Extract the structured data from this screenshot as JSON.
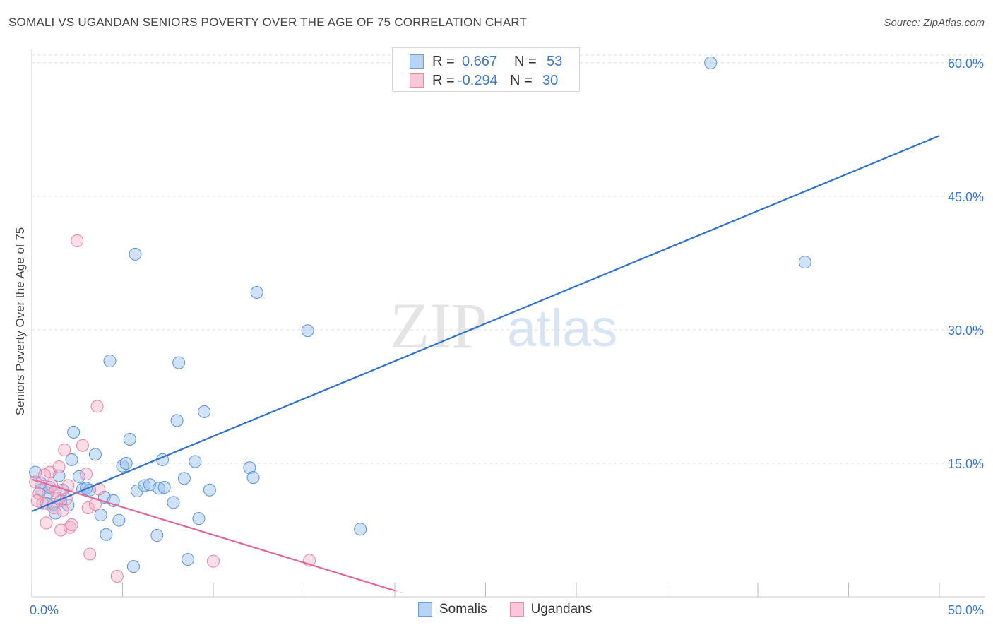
{
  "header": {
    "title": "SOMALI VS UGANDAN SENIORS POVERTY OVER THE AGE OF 75 CORRELATION CHART",
    "source": "Source: ZipAtlas.com"
  },
  "watermark": {
    "zip": "ZIP",
    "atlas": "atlas"
  },
  "legend": {
    "r_label": "R =",
    "n_label": "N =",
    "rows": [
      {
        "name": "Somalis",
        "r": "0.667",
        "n": "53",
        "fill": "#b9d3f5",
        "stroke": "#6a9fe0"
      },
      {
        "name": "Ugandans",
        "r": "-0.294",
        "n": "30",
        "fill": "#f9c7d6",
        "stroke": "#ea8aa8"
      }
    ]
  },
  "colors": {
    "blue_point_fill": "rgba(150,190,240,0.45)",
    "blue_point_stroke": "#5a92d8",
    "pink_point_fill": "rgba(245,170,195,0.40)",
    "pink_point_stroke": "#e8829f",
    "blue_line": "#2f72cc",
    "pink_line": "#e0679a",
    "tick_label": "#3a78c9",
    "grid": "#dddddd"
  },
  "chart_data": {
    "type": "scatter",
    "title": "SOMALI VS UGANDAN SENIORS POVERTY OVER THE AGE OF 75 CORRELATION CHART",
    "xlabel": "",
    "ylabel": "Seniors Poverty Over the Age of 75",
    "xlim": [
      0,
      50
    ],
    "ylim": [
      0,
      61.5
    ],
    "x_tick_labels": [
      {
        "value": 0,
        "label": "0.0%"
      },
      {
        "value": 50,
        "label": "50.0%"
      }
    ],
    "y_tick_labels": [
      {
        "value": 15,
        "label": "15.0%"
      },
      {
        "value": 30,
        "label": "30.0%"
      },
      {
        "value": 45,
        "label": "45.0%"
      },
      {
        "value": 60,
        "label": "60.0%"
      }
    ],
    "x_minor_ticks": [
      0,
      5,
      10,
      15,
      20,
      25,
      30,
      35,
      40,
      45,
      50
    ],
    "series": [
      {
        "name": "Somalis",
        "points": [
          [
            0.2,
            14.0
          ],
          [
            0.5,
            12.0
          ],
          [
            0.9,
            11.7
          ],
          [
            1.0,
            12.3
          ],
          [
            1.2,
            10.4
          ],
          [
            1.5,
            13.6
          ],
          [
            1.7,
            12.0
          ],
          [
            2.0,
            10.3
          ],
          [
            2.3,
            18.5
          ],
          [
            2.6,
            13.5
          ],
          [
            2.8,
            12.1
          ],
          [
            3.2,
            12.0
          ],
          [
            3.5,
            16.0
          ],
          [
            3.8,
            9.2
          ],
          [
            4.0,
            11.2
          ],
          [
            4.3,
            26.5
          ],
          [
            4.5,
            10.8
          ],
          [
            4.8,
            8.6
          ],
          [
            5.0,
            14.7
          ],
          [
            5.2,
            15.0
          ],
          [
            5.4,
            17.7
          ],
          [
            5.6,
            3.4
          ],
          [
            5.8,
            11.9
          ],
          [
            5.7,
            38.5
          ],
          [
            6.2,
            12.5
          ],
          [
            6.5,
            12.6
          ],
          [
            7.0,
            12.2
          ],
          [
            7.2,
            15.4
          ],
          [
            7.3,
            12.3
          ],
          [
            7.8,
            10.6
          ],
          [
            8.0,
            19.8
          ],
          [
            8.1,
            26.3
          ],
          [
            8.4,
            13.3
          ],
          [
            8.6,
            4.2
          ],
          [
            9.0,
            15.2
          ],
          [
            9.2,
            8.8
          ],
          [
            9.5,
            20.8
          ],
          [
            9.8,
            12.0
          ],
          [
            12.0,
            14.5
          ],
          [
            12.2,
            13.4
          ],
          [
            12.4,
            34.2
          ],
          [
            15.2,
            29.9
          ],
          [
            18.1,
            7.6
          ],
          [
            37.4,
            60.0
          ],
          [
            42.6,
            37.6
          ],
          [
            1.3,
            9.4
          ],
          [
            0.8,
            10.5
          ],
          [
            2.2,
            15.4
          ],
          [
            3.0,
            12.2
          ],
          [
            4.1,
            7.0
          ],
          [
            6.9,
            6.9
          ],
          [
            0.5,
            12.8
          ],
          [
            1.6,
            10.8
          ]
        ]
      },
      {
        "name": "Ugandans",
        "points": [
          [
            0.2,
            12.9
          ],
          [
            0.4,
            11.6
          ],
          [
            0.6,
            10.5
          ],
          [
            0.8,
            8.3
          ],
          [
            1.0,
            14.0
          ],
          [
            1.1,
            12.5
          ],
          [
            1.2,
            10.0
          ],
          [
            1.4,
            11.1
          ],
          [
            1.5,
            14.6
          ],
          [
            1.6,
            7.5
          ],
          [
            1.7,
            9.7
          ],
          [
            1.8,
            16.5
          ],
          [
            1.9,
            11.0
          ],
          [
            2.0,
            12.5
          ],
          [
            2.1,
            7.8
          ],
          [
            2.2,
            8.1
          ],
          [
            2.5,
            40.0
          ],
          [
            2.8,
            17.0
          ],
          [
            3.0,
            13.8
          ],
          [
            3.1,
            10.0
          ],
          [
            3.2,
            4.8
          ],
          [
            3.5,
            10.4
          ],
          [
            3.6,
            21.4
          ],
          [
            3.7,
            12.1
          ],
          [
            4.7,
            2.3
          ],
          [
            10.0,
            4.0
          ],
          [
            15.3,
            4.1
          ],
          [
            0.3,
            10.8
          ],
          [
            0.7,
            13.7
          ],
          [
            1.3,
            11.9
          ]
        ]
      }
    ],
    "trend_lines": [
      {
        "series": "Somalis",
        "x": [
          0,
          50
        ],
        "y": [
          9.6,
          51.8
        ]
      },
      {
        "series": "Ugandans",
        "x": [
          0,
          20
        ],
        "y": [
          13.2,
          0.7
        ],
        "dashed_extension_to_x": 20.5
      }
    ]
  }
}
